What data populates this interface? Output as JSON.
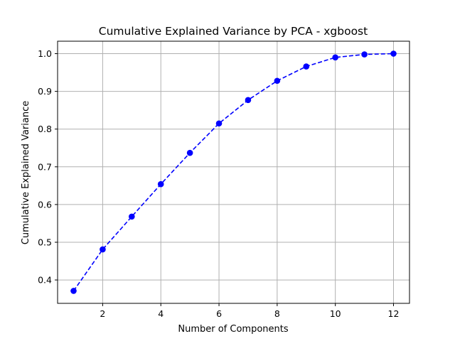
{
  "chart_data": {
    "type": "line",
    "title": "Cumulative Explained Variance by PCA - xgboost",
    "xlabel": "Number of Components",
    "ylabel": "Cumulative Explained Variance",
    "x": [
      1,
      2,
      3,
      4,
      5,
      6,
      7,
      8,
      9,
      10,
      11,
      12
    ],
    "series": [
      {
        "values": [
          0.371,
          0.481,
          0.568,
          0.654,
          0.737,
          0.815,
          0.877,
          0.928,
          0.966,
          0.99,
          0.998,
          1.0
        ],
        "color": "#0000ff",
        "line_style": "dashed",
        "marker": "circle"
      }
    ],
    "xlim": [
      0.45,
      12.55
    ],
    "ylim": [
      0.338,
      1.033
    ],
    "xticks": [
      2,
      4,
      6,
      8,
      10,
      12
    ],
    "yticks": [
      0.4,
      0.5,
      0.6,
      0.7,
      0.8,
      0.9,
      1.0
    ],
    "xtick_labels": [
      "2",
      "4",
      "6",
      "8",
      "10",
      "12"
    ],
    "ytick_labels": [
      "0.4",
      "0.5",
      "0.6",
      "0.7",
      "0.8",
      "0.9",
      "1.0"
    ],
    "grid": true,
    "legend": false
  }
}
